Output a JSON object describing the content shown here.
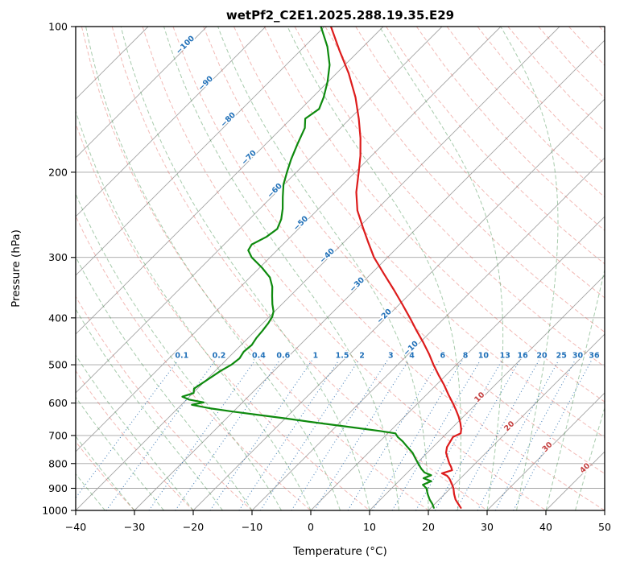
{
  "chart_data": {
    "type": "line",
    "subtype": "skew-t-log-p-sounding",
    "title": "wetPf2_C2E1.2025.288.19.35.E29",
    "xlabel": "Temperature (°C)",
    "ylabel": "Pressure (hPa)",
    "xlim": [
      -40,
      50
    ],
    "pressure_lim": [
      1000,
      100
    ],
    "x_ticks": [
      -40,
      -30,
      -20,
      -10,
      0,
      10,
      20,
      30,
      40,
      50
    ],
    "p_ticks": [
      100,
      200,
      300,
      400,
      500,
      600,
      700,
      800,
      900,
      1000
    ],
    "skew_degrees": 45,
    "grid": true,
    "legend": "none",
    "colors": {
      "temperature": "#dd1c1c",
      "dewpoint": "#0e8a0e",
      "isotherm": "#a3a3a3",
      "grid": "#a3a3a3",
      "dry_adiabat": "rgba(225,90,80,0.42)",
      "moist_adiabat": "rgba(60,140,70,0.45)",
      "mixing_ratio": "rgba(45,110,175,0.85)",
      "isotherm_label_neg": "#2070b8",
      "isotherm_label_pos": "#c44040"
    },
    "isotherms": {
      "start": -110,
      "end": 50,
      "step": 10
    },
    "dry_adiabats": {
      "start": -40,
      "end": 200,
      "step": 10
    },
    "moist_adiabats": {
      "start": -40,
      "end": 60,
      "step": 5
    },
    "mixing_ratio_lines": {
      "values": [
        0.1,
        0.2,
        0.4,
        0.6,
        1,
        1.5,
        2,
        3,
        4,
        6,
        8,
        10,
        13,
        16,
        20,
        25,
        30,
        36
      ],
      "label_p": 478,
      "top_p": 490
    },
    "isotherm_labels": [
      {
        "t": -100,
        "p": 110
      },
      {
        "t": -90,
        "p": 132
      },
      {
        "t": -80,
        "p": 157
      },
      {
        "t": -70,
        "p": 188
      },
      {
        "t": -60,
        "p": 220
      },
      {
        "t": -50,
        "p": 257
      },
      {
        "t": -40,
        "p": 300
      },
      {
        "t": -30,
        "p": 344
      },
      {
        "t": -20,
        "p": 400
      },
      {
        "t": -10,
        "p": 466
      },
      {
        "t": 10,
        "p": 588
      },
      {
        "t": 20,
        "p": 675
      },
      {
        "t": 30,
        "p": 745
      },
      {
        "t": 40,
        "p": 824
      }
    ],
    "series": [
      {
        "name": "temperature",
        "color": "#dd1c1c",
        "points": [
          [
            988,
            25.1
          ],
          [
            970,
            24.0
          ],
          [
            950,
            22.8
          ],
          [
            925,
            21.6
          ],
          [
            900,
            20.5
          ],
          [
            880,
            19.4
          ],
          [
            860,
            18.2
          ],
          [
            848,
            17.3
          ],
          [
            838,
            16.0
          ],
          [
            826,
            17.2
          ],
          [
            812,
            16.4
          ],
          [
            800,
            15.6
          ],
          [
            780,
            14.4
          ],
          [
            760,
            13.2
          ],
          [
            740,
            12.4
          ],
          [
            720,
            12.0
          ],
          [
            705,
            11.7
          ],
          [
            693,
            12.4
          ],
          [
            680,
            11.8
          ],
          [
            660,
            10.6
          ],
          [
            640,
            9.2
          ],
          [
            620,
            7.6
          ],
          [
            600,
            5.9
          ],
          [
            575,
            3.6
          ],
          [
            550,
            1.3
          ],
          [
            525,
            -1.3
          ],
          [
            500,
            -3.9
          ],
          [
            475,
            -6.5
          ],
          [
            450,
            -9.4
          ],
          [
            425,
            -12.6
          ],
          [
            400,
            -15.9
          ],
          [
            375,
            -19.5
          ],
          [
            350,
            -23.4
          ],
          [
            325,
            -27.7
          ],
          [
            300,
            -32.3
          ],
          [
            280,
            -35.7
          ],
          [
            260,
            -39.3
          ],
          [
            240,
            -43.1
          ],
          [
            220,
            -46.4
          ],
          [
            200,
            -49.4
          ],
          [
            185,
            -51.9
          ],
          [
            170,
            -54.9
          ],
          [
            155,
            -58.5
          ],
          [
            140,
            -62.7
          ],
          [
            125,
            -67.9
          ],
          [
            112,
            -73.4
          ],
          [
            100,
            -78.9
          ]
        ]
      },
      {
        "name": "dewpoint",
        "color": "#0e8a0e",
        "points": [
          [
            988,
            20.5
          ],
          [
            970,
            19.6
          ],
          [
            950,
            18.4
          ],
          [
            925,
            17.1
          ],
          [
            900,
            15.9
          ],
          [
            885,
            14.7
          ],
          [
            870,
            15.5
          ],
          [
            858,
            13.7
          ],
          [
            846,
            14.5
          ],
          [
            835,
            12.9
          ],
          [
            820,
            11.7
          ],
          [
            800,
            10.3
          ],
          [
            780,
            8.9
          ],
          [
            760,
            7.5
          ],
          [
            740,
            5.7
          ],
          [
            720,
            3.9
          ],
          [
            705,
            2.3
          ],
          [
            693,
            1.3
          ],
          [
            685,
            -1.8
          ],
          [
            675,
            -6.4
          ],
          [
            665,
            -11.0
          ],
          [
            655,
            -15.6
          ],
          [
            645,
            -20.2
          ],
          [
            635,
            -25.0
          ],
          [
            625,
            -30.0
          ],
          [
            615,
            -34.6
          ],
          [
            605,
            -38.2
          ],
          [
            598,
            -36.6
          ],
          [
            590,
            -39.6
          ],
          [
            582,
            -41.2
          ],
          [
            572,
            -39.9
          ],
          [
            560,
            -40.6
          ],
          [
            545,
            -40.1
          ],
          [
            530,
            -39.6
          ],
          [
            515,
            -39.1
          ],
          [
            500,
            -38.3
          ],
          [
            485,
            -38.0
          ],
          [
            470,
            -38.4
          ],
          [
            455,
            -38.2
          ],
          [
            440,
            -38.6
          ],
          [
            425,
            -38.8
          ],
          [
            410,
            -39.1
          ],
          [
            398,
            -39.5
          ],
          [
            388,
            -40.2
          ],
          [
            375,
            -41.6
          ],
          [
            360,
            -43.1
          ],
          [
            345,
            -44.6
          ],
          [
            330,
            -46.6
          ],
          [
            315,
            -49.6
          ],
          [
            300,
            -53.1
          ],
          [
            290,
            -54.9
          ],
          [
            282,
            -55.3
          ],
          [
            272,
            -54.1
          ],
          [
            262,
            -53.6
          ],
          [
            250,
            -54.6
          ],
          [
            238,
            -56.1
          ],
          [
            225,
            -58.1
          ],
          [
            212,
            -60.1
          ],
          [
            200,
            -61.6
          ],
          [
            188,
            -63.1
          ],
          [
            175,
            -64.6
          ],
          [
            162,
            -66.1
          ],
          [
            155,
            -67.6
          ],
          [
            148,
            -66.9
          ],
          [
            140,
            -68.1
          ],
          [
            130,
            -70.1
          ],
          [
            120,
            -72.6
          ],
          [
            110,
            -76.1
          ],
          [
            100,
            -80.6
          ]
        ]
      }
    ]
  }
}
